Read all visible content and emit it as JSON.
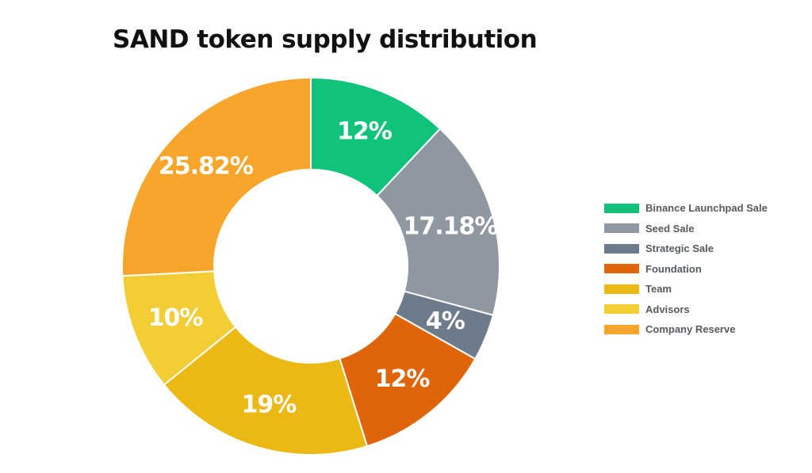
{
  "chart_data": {
    "type": "pie",
    "title": "SAND token supply distribution",
    "legend_position": "right",
    "donut": true,
    "series": [
      {
        "name": "Binance Launchpad Sale",
        "value": 12,
        "label": "12%",
        "color": "#10c27a"
      },
      {
        "name": "Seed Sale",
        "value": 17.18,
        "label": "17.18%",
        "color": "#8f97a1"
      },
      {
        "name": "Strategic Sale",
        "value": 4,
        "label": "4%",
        "color": "#6e7b8b"
      },
      {
        "name": "Foundation",
        "value": 12,
        "label": "12%",
        "color": "#e0650a"
      },
      {
        "name": "Team",
        "value": 19,
        "label": "19%",
        "color": "#ecb813"
      },
      {
        "name": "Advisors",
        "value": 10,
        "label": "10%",
        "color": "#f2cd36"
      },
      {
        "name": "Company Reserve",
        "value": 25.82,
        "label": "25.82%",
        "color": "#f7a52b"
      }
    ]
  }
}
